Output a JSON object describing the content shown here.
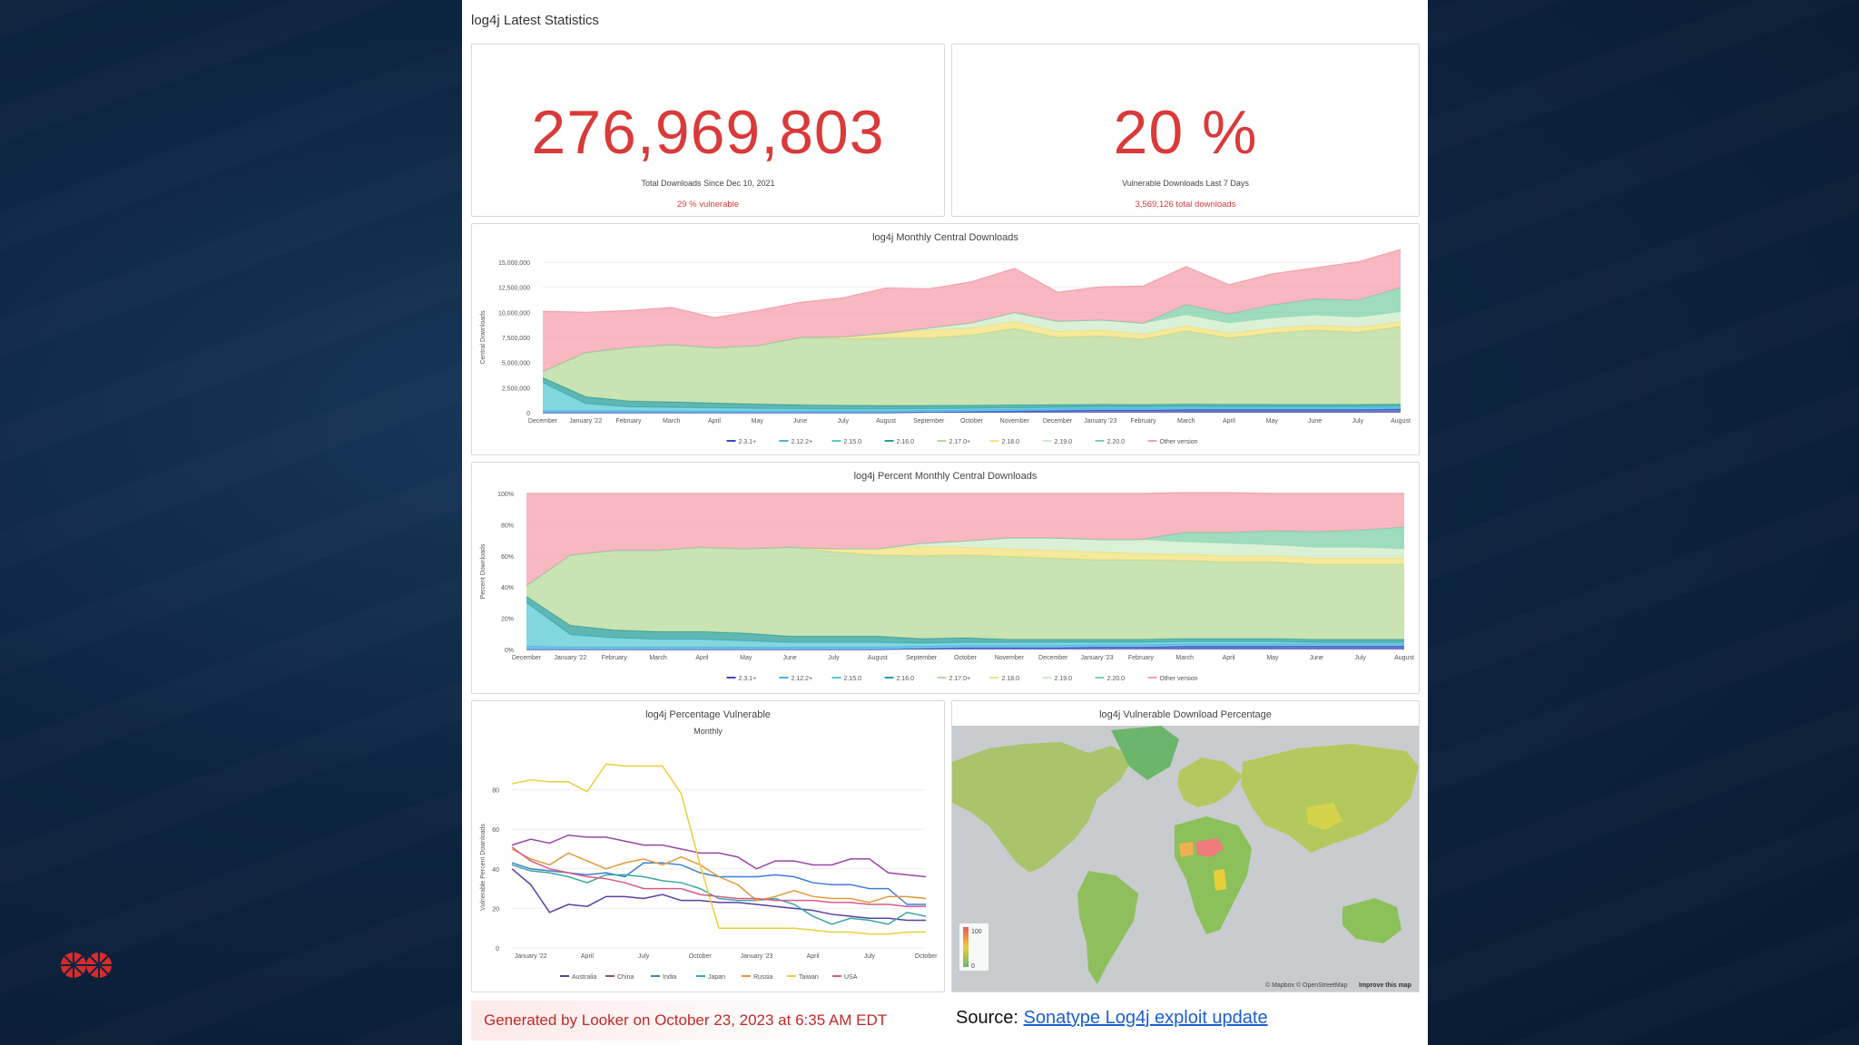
{
  "dashboard": {
    "title": "log4j Latest Statistics"
  },
  "kpi_total": {
    "value": "276,969,803",
    "label": "Total Downloads Since Dec 10, 2021",
    "sub": "29 % vulnerable"
  },
  "kpi_vuln": {
    "value": "20 %",
    "label": "Vulnerable Downloads Last 7 Days",
    "sub": "3,569,126 total downloads"
  },
  "footer": {
    "generated": "Generated by Looker on October 23, 2023 at 6:35 AM EDT",
    "source_label": "Source:",
    "source_link": "Sonatype Log4j exploit update"
  },
  "map": {
    "title": "log4j Vulnerable Download Percentage",
    "legend_max": "100",
    "legend_min": "0",
    "attribution": "© Mapbox © OpenStreetMap",
    "improve": "Improve this map"
  },
  "colors": {
    "accent_red": "#d93a3a",
    "link_blue": "#1a5fd6"
  },
  "chart_data": [
    {
      "type": "area",
      "title": "log4j Monthly Central Downloads",
      "ylabel": "Central Downloads",
      "ylim": [
        0,
        15000000
      ],
      "ytick_labels": [
        "0",
        "2,500,000",
        "5,000,000",
        "7,500,000",
        "10,000,000",
        "12,500,000",
        "15,000,000"
      ],
      "categories": [
        "December",
        "January '22",
        "February",
        "March",
        "April",
        "May",
        "June",
        "July",
        "August",
        "September",
        "October",
        "November",
        "December",
        "January '23",
        "February",
        "March",
        "April",
        "May",
        "June",
        "July",
        "August"
      ],
      "series": [
        {
          "name": "2.3.1+",
          "color": "#3b4bb8",
          "values": [
            0,
            0,
            0,
            0,
            0,
            0,
            0,
            0,
            0,
            50000,
            100000,
            150000,
            200000,
            250000,
            250000,
            300000,
            300000,
            300000,
            300000,
            300000,
            350000
          ]
        },
        {
          "name": "2.12.2+",
          "color": "#4fb0e8",
          "values": [
            200000,
            200000,
            180000,
            180000,
            170000,
            170000,
            170000,
            170000,
            170000,
            170000,
            170000,
            170000,
            170000,
            170000,
            170000,
            170000,
            170000,
            170000,
            170000,
            170000,
            170000
          ]
        },
        {
          "name": "2.15.0",
          "color": "#59c9d4",
          "values": [
            2800000,
            700000,
            400000,
            350000,
            300000,
            250000,
            220000,
            200000,
            200000,
            180000,
            170000,
            160000,
            150000,
            150000,
            140000,
            140000,
            130000,
            130000,
            130000,
            130000,
            120000
          ]
        },
        {
          "name": "2.16.0",
          "color": "#2a9d9a",
          "values": [
            500000,
            700000,
            600000,
            550000,
            500000,
            450000,
            400000,
            380000,
            350000,
            330000,
            310000,
            300000,
            280000,
            270000,
            260000,
            250000,
            240000,
            230000,
            230000,
            220000,
            220000
          ]
        },
        {
          "name": "2.17.0+",
          "color": "#b7d99a",
          "values": [
            600000,
            4400000,
            5300000,
            5700000,
            5500000,
            5800000,
            6700000,
            6600000,
            6700000,
            6700000,
            7000000,
            7600000,
            6700000,
            6800000,
            6500000,
            7300000,
            6600000,
            7100000,
            7400000,
            7200000,
            7700000
          ]
        },
        {
          "name": "2.18.0",
          "color": "#f3e27a",
          "values": [
            0,
            0,
            0,
            0,
            0,
            0,
            0,
            200000,
            500000,
            800000,
            700000,
            700000,
            600000,
            600000,
            500000,
            500000,
            500000,
            500000,
            500000,
            500000,
            500000
          ]
        },
        {
          "name": "2.19.0",
          "color": "#cdeccb",
          "values": [
            0,
            0,
            0,
            0,
            0,
            0,
            0,
            0,
            0,
            200000,
            500000,
            900000,
            1000000,
            1000000,
            1100000,
            1100000,
            1000000,
            1000000,
            1000000,
            1000000,
            1000000
          ]
        },
        {
          "name": "2.20.0",
          "color": "#7fd0a8",
          "values": [
            0,
            0,
            0,
            0,
            0,
            0,
            0,
            0,
            0,
            0,
            0,
            0,
            0,
            0,
            0,
            1000000,
            900000,
            1300000,
            1600000,
            1700000,
            2400000
          ]
        },
        {
          "name": "Other version",
          "color": "#f4a0ab",
          "values": [
            6000000,
            4000000,
            3700000,
            3700000,
            3000000,
            3500000,
            3500000,
            3900000,
            4500000,
            3900000,
            4100000,
            4400000,
            2900000,
            3300000,
            3700000,
            3800000,
            2900000,
            3100000,
            3100000,
            3800000,
            3800000
          ]
        }
      ]
    },
    {
      "type": "area",
      "title": "log4j Percent Monthly Central Downloads",
      "ylabel": "Percent Downloads",
      "ylim": [
        0,
        100
      ],
      "ytick_labels": [
        "0%",
        "20%",
        "40%",
        "60%",
        "80%",
        "100%"
      ],
      "categories": [
        "December",
        "January '22",
        "February",
        "March",
        "April",
        "May",
        "June",
        "July",
        "August",
        "September",
        "October",
        "November",
        "December",
        "January '23",
        "February",
        "March",
        "April",
        "May",
        "June",
        "July",
        "August"
      ],
      "series": [
        {
          "name": "2.3.1+",
          "color": "#3b4bb8",
          "values": [
            0,
            0,
            0,
            0,
            0,
            0,
            0,
            0,
            0,
            0.5,
            1,
            1,
            1,
            1.5,
            1.5,
            2,
            2,
            2,
            2,
            2,
            2
          ]
        },
        {
          "name": "2.12.2+",
          "color": "#4fb0e8",
          "values": [
            2,
            1.5,
            1.5,
            1.5,
            1.5,
            1.5,
            1.5,
            1.5,
            1.5,
            1.5,
            1.5,
            1.5,
            1.5,
            1.5,
            1.5,
            1.5,
            1.5,
            1.5,
            1.5,
            1.5,
            1.5
          ]
        },
        {
          "name": "2.15.0",
          "color": "#59c9d4",
          "values": [
            28,
            8,
            6,
            5,
            5,
            4,
            3,
            3,
            3,
            2,
            2,
            2,
            2,
            1.5,
            1.5,
            1.5,
            1.5,
            1.5,
            1,
            1,
            1
          ]
        },
        {
          "name": "2.16.0",
          "color": "#2a9d9a",
          "values": [
            4,
            6,
            5,
            5,
            5,
            5,
            4,
            4,
            4,
            3,
            3,
            2,
            2,
            2,
            2,
            2,
            2,
            2,
            2,
            2,
            2
          ]
        },
        {
          "name": "2.17.0+",
          "color": "#b7d99a",
          "values": [
            7,
            45,
            51,
            52,
            54,
            54,
            57,
            54,
            52,
            53,
            53,
            53,
            52,
            51,
            51,
            50,
            49,
            49,
            48,
            48,
            48
          ]
        },
        {
          "name": "2.18.0",
          "color": "#f3e27a",
          "values": [
            0,
            0,
            0,
            0,
            0,
            0,
            0,
            2,
            4,
            6,
            5,
            5,
            5,
            5,
            4,
            4,
            4,
            4,
            4,
            4,
            4
          ]
        },
        {
          "name": "2.19.0",
          "color": "#cdeccb",
          "values": [
            0,
            0,
            0,
            0,
            0,
            0,
            0,
            0,
            0,
            2,
            4,
            7,
            8,
            8,
            9,
            8,
            8,
            7,
            7,
            7,
            6
          ]
        },
        {
          "name": "2.20.0",
          "color": "#7fd0a8",
          "values": [
            0,
            0,
            0,
            0,
            0,
            0,
            0,
            0,
            0,
            0,
            0,
            0,
            0,
            0,
            0,
            6,
            7,
            9,
            10,
            11,
            14
          ]
        },
        {
          "name": "Other version",
          "color": "#f4a0ab",
          "values": [
            59,
            39.5,
            36.5,
            36.5,
            34.5,
            35.5,
            34.5,
            35.5,
            35.5,
            32,
            30.5,
            28.5,
            28.5,
            29.5,
            29.5,
            25.5,
            25.5,
            24,
            24.5,
            23.5,
            21.5
          ]
        }
      ]
    },
    {
      "type": "line",
      "title": "log4j Percentage Vulnerable",
      "subtitle": "Monthly",
      "ylabel": "Vulnerable Percent Downloads",
      "ylim": [
        0,
        100
      ],
      "yticks": [
        0,
        20,
        40,
        60,
        80
      ],
      "categories": [
        "December",
        "January '22",
        "February",
        "March",
        "April",
        "May",
        "June",
        "July",
        "August",
        "September",
        "October",
        "November",
        "December",
        "January '23",
        "February",
        "March",
        "April",
        "May",
        "June",
        "July",
        "August",
        "September",
        "October"
      ],
      "xtick_labels": [
        {
          "i": 1,
          "label": "January '22"
        },
        {
          "i": 4,
          "label": "April"
        },
        {
          "i": 7,
          "label": "July"
        },
        {
          "i": 10,
          "label": "October"
        },
        {
          "i": 13,
          "label": "January '23"
        },
        {
          "i": 16,
          "label": "April"
        },
        {
          "i": 19,
          "label": "July"
        },
        {
          "i": 22,
          "label": "October"
        }
      ],
      "series": [
        {
          "name": "Australia",
          "color": "#5a3fa0",
          "values": [
            40,
            32,
            18,
            22,
            21,
            26,
            26,
            25,
            27,
            24,
            24,
            23,
            23,
            22,
            21,
            20,
            19,
            17,
            16,
            15,
            15,
            14,
            14
          ]
        },
        {
          "name": "China",
          "color": "#9b45a8",
          "values": [
            52,
            55,
            53,
            57,
            56,
            56,
            54,
            52,
            52,
            50,
            48,
            48,
            46,
            40,
            44,
            44,
            42,
            42,
            45,
            45,
            38,
            37,
            36
          ]
        },
        {
          "name": "India",
          "color": "#3d7fd6",
          "values": [
            43,
            40,
            39,
            38,
            37,
            38,
            36,
            43,
            43,
            42,
            38,
            36,
            36,
            36,
            37,
            36,
            33,
            32,
            32,
            30,
            30,
            22,
            22
          ]
        },
        {
          "name": "Japan",
          "color": "#37a8a0",
          "values": [
            42,
            39,
            38,
            36,
            33,
            37,
            37,
            36,
            34,
            33,
            30,
            25,
            24,
            24,
            25,
            22,
            16,
            12,
            15,
            14,
            12,
            18,
            16
          ]
        },
        {
          "name": "Russia",
          "color": "#e29a3a",
          "values": [
            50,
            45,
            42,
            48,
            44,
            40,
            43,
            45,
            42,
            46,
            42,
            36,
            32,
            24,
            26,
            29,
            26,
            25,
            25,
            23,
            26,
            26,
            25
          ]
        },
        {
          "name": "Taiwan",
          "color": "#e8cf3a",
          "values": [
            83,
            85,
            84,
            84,
            79,
            93,
            92,
            92,
            92,
            78,
            42,
            10,
            10,
            10,
            10,
            10,
            9,
            8,
            8,
            7,
            7,
            8,
            8
          ]
        },
        {
          "name": "USA",
          "color": "#d85a88",
          "values": [
            51,
            44,
            40,
            38,
            36,
            35,
            33,
            30,
            30,
            30,
            27,
            26,
            25,
            25,
            24,
            24,
            24,
            23,
            23,
            22,
            22,
            21,
            21
          ]
        }
      ]
    }
  ]
}
